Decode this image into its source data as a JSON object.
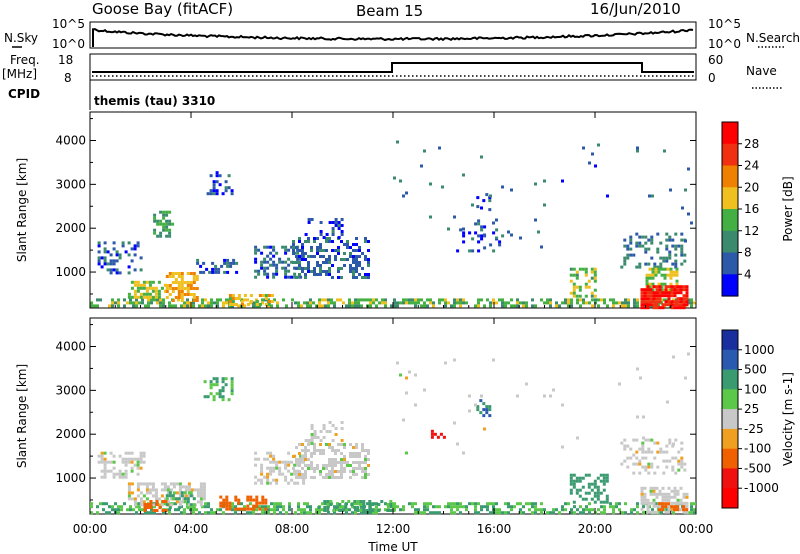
{
  "header": {
    "station": "Goose Bay (fitACF)",
    "beam": "Beam 15",
    "date": "16/Jun/2010"
  },
  "status_panel": {
    "nsky_label": "N.Sky",
    "nsearch_label": "N.Search",
    "freq_label_line1": "Freq.",
    "freq_label_line2": "[MHz]",
    "nave_label": "Nave",
    "cpid_label": "CPID",
    "cpid_text": "themis (tau) 3310",
    "noise_ticks": [
      "10^5",
      "10^0"
    ],
    "freq_ticks": [
      "18",
      "8"
    ],
    "nave_ticks": [
      "60",
      "0"
    ]
  },
  "colors": {
    "power_scale": [
      "#0000ff",
      "#2d5aa8",
      "#3c8a6e",
      "#44b044",
      "#f0c020",
      "#f08000",
      "#f03010",
      "#ff0000"
    ],
    "velocity_scale": [
      "#1a2f9e",
      "#2a5ab0",
      "#3a9a70",
      "#5cc84a",
      "#c8c8c8",
      "#f0a020",
      "#f06000",
      "#f01010",
      "#ff0000"
    ]
  },
  "chart_data": [
    {
      "type": "heatmap",
      "name": "power",
      "ylabel": "Slant Range [km]",
      "xlabel": "",
      "x_ticks": [
        "00:00",
        "04:00",
        "08:00",
        "12:00",
        "16:00",
        "20:00",
        "00:00"
      ],
      "y_ticks": [
        "1000",
        "2000",
        "3000",
        "4000"
      ],
      "xlim": [
        0,
        24
      ],
      "ylim": [
        180,
        4650
      ],
      "colorbar": {
        "label": "Power [dB]",
        "ticks": [
          "4",
          "8",
          "12",
          "16",
          "20",
          "24",
          "28"
        ],
        "range": [
          0,
          30
        ]
      },
      "regions": [
        {
          "t": [
            0.0,
            24.0
          ],
          "r": [
            200,
            400
          ],
          "value": 14,
          "density": 0.55
        },
        {
          "t": [
            0.3,
            2.0
          ],
          "r": [
            1000,
            1700
          ],
          "value": 6,
          "density": 0.35
        },
        {
          "t": [
            1.5,
            3.0
          ],
          "r": [
            400,
            800
          ],
          "value": 16,
          "density": 0.5
        },
        {
          "t": [
            2.5,
            3.3
          ],
          "r": [
            1800,
            2400
          ],
          "value": 12,
          "density": 0.5
        },
        {
          "t": [
            3.0,
            4.2
          ],
          "r": [
            350,
            1000
          ],
          "value": 20,
          "density": 0.65
        },
        {
          "t": [
            4.2,
            5.8
          ],
          "r": [
            1000,
            1300
          ],
          "value": 6,
          "density": 0.35
        },
        {
          "t": [
            4.5,
            5.6
          ],
          "r": [
            2800,
            3300
          ],
          "value": 5,
          "density": 0.35
        },
        {
          "t": [
            5.5,
            7.2
          ],
          "r": [
            250,
            500
          ],
          "value": 18,
          "density": 0.55
        },
        {
          "t": [
            6.5,
            8.5
          ],
          "r": [
            900,
            1600
          ],
          "value": 7,
          "density": 0.45
        },
        {
          "t": [
            8.0,
            11.0
          ],
          "r": [
            900,
            1800
          ],
          "value": 6,
          "density": 0.45
        },
        {
          "t": [
            8.5,
            10.0
          ],
          "r": [
            1800,
            2300
          ],
          "value": 5,
          "density": 0.25
        },
        {
          "t": [
            14.5,
            16.3
          ],
          "r": [
            1500,
            2200
          ],
          "value": 5,
          "density": 0.18
        },
        {
          "t": [
            15.3,
            15.8
          ],
          "r": [
            2400,
            2800
          ],
          "value": 6,
          "density": 0.4
        },
        {
          "t": [
            19.0,
            20.0
          ],
          "r": [
            450,
            1100
          ],
          "value": 15,
          "density": 0.45
        },
        {
          "t": [
            21.0,
            23.5
          ],
          "r": [
            1100,
            1900
          ],
          "value": 8,
          "density": 0.3
        },
        {
          "t": [
            22.0,
            23.2
          ],
          "r": [
            600,
            1100
          ],
          "value": 16,
          "density": 0.55
        },
        {
          "t": [
            21.8,
            23.6
          ],
          "r": [
            200,
            700
          ],
          "value": 29,
          "density": 0.85
        },
        {
          "t": [
            12.0,
            24.0
          ],
          "r": [
            1500,
            4000
          ],
          "value": 7,
          "density": 0.012
        }
      ]
    },
    {
      "type": "heatmap",
      "name": "velocity",
      "ylabel": "Slant Range [km]",
      "xlabel": "Time UT",
      "x_ticks": [
        "00:00",
        "04:00",
        "08:00",
        "12:00",
        "16:00",
        "20:00",
        "00:00"
      ],
      "y_ticks": [
        "1000",
        "2000",
        "3000",
        "4000"
      ],
      "xlim": [
        0,
        24
      ],
      "ylim": [
        180,
        4650
      ],
      "colorbar": {
        "label": "Velocity [m s-1]",
        "ticks": [
          "1000",
          "500",
          "100",
          "25",
          "-25",
          "-100",
          "-500",
          "-1000"
        ],
        "range": [
          -1250,
          1250
        ]
      },
      "regions": [
        {
          "t": [
            0.0,
            24.0
          ],
          "r": [
            220,
            450
          ],
          "value": 60,
          "density": 0.5
        },
        {
          "t": [
            0.3,
            2.2
          ],
          "r": [
            1000,
            1600
          ],
          "value": 0,
          "density": 0.45
        },
        {
          "t": [
            1.5,
            4.5
          ],
          "r": [
            400,
            900
          ],
          "value": 0,
          "density": 0.55
        },
        {
          "t": [
            2.0,
            3.0
          ],
          "r": [
            250,
            500
          ],
          "value": -150,
          "density": 0.5
        },
        {
          "t": [
            3.0,
            4.2
          ],
          "r": [
            350,
            700
          ],
          "value": 70,
          "density": 0.45
        },
        {
          "t": [
            4.5,
            5.6
          ],
          "r": [
            2800,
            3300
          ],
          "value": 60,
          "density": 0.35
        },
        {
          "t": [
            5.0,
            7.0
          ],
          "r": [
            300,
            600
          ],
          "value": -120,
          "density": 0.45
        },
        {
          "t": [
            6.5,
            8.5
          ],
          "r": [
            900,
            1600
          ],
          "value": 0,
          "density": 0.45
        },
        {
          "t": [
            8.0,
            11.0
          ],
          "r": [
            1000,
            1800
          ],
          "value": 0,
          "density": 0.5
        },
        {
          "t": [
            8.5,
            10.0
          ],
          "r": [
            1800,
            2300
          ],
          "value": 0,
          "density": 0.25
        },
        {
          "t": [
            9.0,
            12.0
          ],
          "r": [
            250,
            500
          ],
          "value": 70,
          "density": 0.45
        },
        {
          "t": [
            13.5,
            14.0
          ],
          "r": [
            1900,
            2100
          ],
          "value": -600,
          "density": 0.6
        },
        {
          "t": [
            15.3,
            15.8
          ],
          "r": [
            2400,
            2800
          ],
          "value": 300,
          "density": 0.4
        },
        {
          "t": [
            19.0,
            20.5
          ],
          "r": [
            450,
            1100
          ],
          "value": 150,
          "density": 0.45
        },
        {
          "t": [
            21.0,
            23.5
          ],
          "r": [
            1100,
            1900
          ],
          "value": 0,
          "density": 0.3
        },
        {
          "t": [
            21.8,
            23.6
          ],
          "r": [
            200,
            800
          ],
          "value": 0,
          "density": 0.6
        },
        {
          "t": [
            22.5,
            23.6
          ],
          "r": [
            250,
            450
          ],
          "value": -150,
          "density": 0.5
        },
        {
          "t": [
            12.0,
            24.0
          ],
          "r": [
            1500,
            4000
          ],
          "value": 0,
          "density": 0.012
        }
      ]
    }
  ]
}
